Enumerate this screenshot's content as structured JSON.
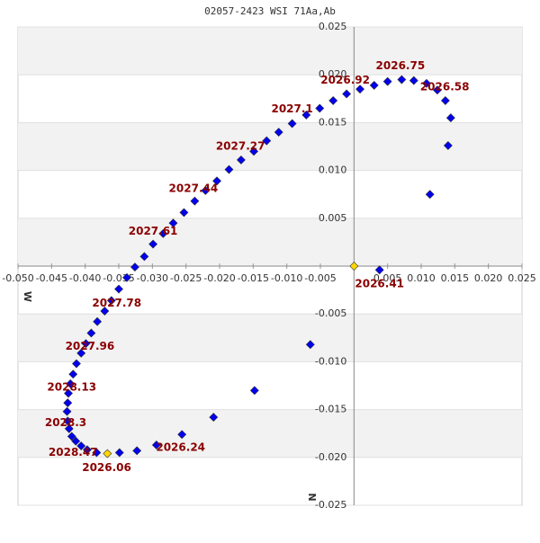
{
  "chart_data": {
    "type": "scatter",
    "title": "02057-2423 WSI  71Aa,Ab",
    "x_label": "W",
    "y_label": "N",
    "xlim": [
      -0.05,
      0.025
    ],
    "ylim": [
      -0.025,
      0.025
    ],
    "xticks": [
      {
        "value": -0.05,
        "label": "-0.050"
      },
      -0.045,
      {
        "value": -0.04,
        "label": "-0.040"
      },
      -0.035,
      {
        "value": -0.03,
        "label": "-0.030"
      },
      -0.025,
      {
        "value": -0.02,
        "label": "-0.020"
      },
      -0.015,
      {
        "value": -0.01,
        "label": "-0.010"
      },
      -0.005,
      0.005,
      {
        "value": 0.01,
        "label": "0.010"
      },
      0.015,
      {
        "value": 0.02,
        "label": "0.020"
      },
      0.025
    ],
    "yticks": [
      0.025,
      {
        "value": 0.02,
        "label": "0.020"
      },
      0.015,
      {
        "value": 0.01,
        "label": "0.010"
      },
      0.005,
      -0.005,
      {
        "value": -0.01,
        "label": "-0.010"
      },
      -0.015,
      {
        "value": -0.02,
        "label": "-0.020"
      },
      -0.025
    ],
    "grid": true,
    "series": [
      {
        "color": "#0000ee",
        "x": [
          0.0038,
          0.0113,
          0.014,
          0.0144,
          0.0136,
          0.0124,
          0.0108,
          0.0089,
          0.0071,
          0.005,
          0.003,
          0.0009,
          -0.0011,
          -0.0031,
          -0.0051,
          -0.0071,
          -0.0092,
          -0.0112,
          -0.013,
          -0.0149,
          -0.0168,
          -0.0186,
          -0.0204,
          -0.0221,
          -0.0237,
          -0.0253,
          -0.0269,
          -0.0284,
          -0.0299,
          -0.0312,
          -0.0326,
          -0.0338,
          -0.035,
          -0.0361,
          -0.0371,
          -0.0382,
          -0.0391,
          -0.0399,
          -0.0406,
          -0.0413,
          -0.0418,
          -0.0422,
          -0.0425,
          -0.0426,
          -0.0427,
          -0.0426,
          -0.0424,
          -0.042,
          -0.0414,
          -0.0406,
          -0.0397,
          -0.0383,
          -0.0349,
          -0.0323,
          -0.0294,
          -0.0256,
          -0.0209,
          -0.0148,
          -0.0065
        ],
        "y": [
          -0.0004,
          0.0075,
          0.0126,
          0.0155,
          0.0173,
          0.0184,
          0.0191,
          0.0194,
          0.0195,
          0.0193,
          0.0189,
          0.0185,
          0.018,
          0.0173,
          0.0165,
          0.0158,
          0.0149,
          0.014,
          0.0131,
          0.012,
          0.0111,
          0.0101,
          0.0089,
          0.0079,
          0.0068,
          0.0056,
          0.0045,
          0.0034,
          0.0023,
          0.001,
          -0.0001,
          -0.0012,
          -0.0024,
          -0.0036,
          -0.0047,
          -0.0058,
          -0.007,
          -0.0081,
          -0.0091,
          -0.0102,
          -0.0113,
          -0.0123,
          -0.0133,
          -0.0143,
          -0.0152,
          -0.0162,
          -0.017,
          -0.0178,
          -0.0183,
          -0.0188,
          -0.0192,
          -0.0195,
          -0.0195,
          -0.0193,
          -0.0187,
          -0.0176,
          -0.0158,
          -0.013,
          -0.0082
        ]
      },
      {
        "color": "#ffd700",
        "x": [
          0,
          -0.0367
        ],
        "y": [
          0,
          -0.0196
        ]
      }
    ],
    "annotations": [
      {
        "text": "2026.41",
        "x": 0.0038,
        "y": -0.0019
      },
      {
        "text": "2026.58",
        "x": 0.0135,
        "y": 0.0187
      },
      {
        "text": "2026.75",
        "x": 0.0069,
        "y": 0.0209
      },
      {
        "text": "2026.92",
        "x": -0.0013,
        "y": 0.0194
      },
      {
        "text": "2027.1",
        "x": -0.0092,
        "y": 0.0164
      },
      {
        "text": "2027.27",
        "x": -0.0169,
        "y": 0.0125
      },
      {
        "text": "2027.44",
        "x": -0.0239,
        "y": 0.0081
      },
      {
        "text": "2027.61",
        "x": -0.0299,
        "y": 0.0036
      },
      {
        "text": "2027.78",
        "x": -0.0353,
        "y": -0.0039
      },
      {
        "text": "2027.96",
        "x": -0.0393,
        "y": -0.0084
      },
      {
        "text": "2028.13",
        "x": -0.042,
        "y": -0.0127
      },
      {
        "text": "2028.3",
        "x": -0.0429,
        "y": -0.0164
      },
      {
        "text": "2028.47",
        "x": -0.0418,
        "y": -0.0195
      },
      {
        "text": "2026.06",
        "x": -0.0368,
        "y": -0.0211
      },
      {
        "text": "2026.24",
        "x": -0.0258,
        "y": -0.019
      }
    ]
  }
}
